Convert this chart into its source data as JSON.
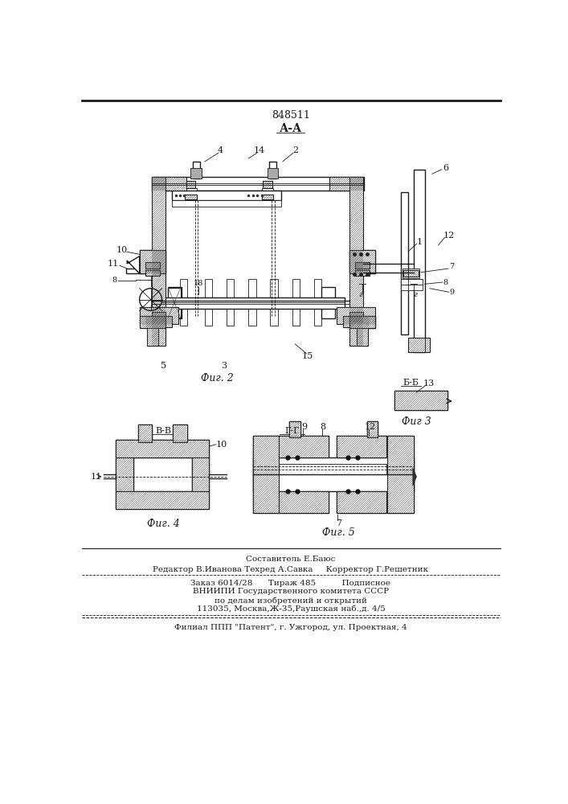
{
  "patent_number": "848511",
  "section_label_top": "А-А",
  "fig2_label": "Фиг. 2",
  "fig3_label": "Фиг 3",
  "fig4_label": "Фиг. 4",
  "fig5_label": "Фиг. 5",
  "section_bb_label": "Б-Б",
  "section_vv_label": "В-В",
  "section_gg_label": "Г-Г",
  "composer_line": "Составитель Е.Баюс",
  "editor_line": "Редактор В.Иванова Техред А.Савка     Корректор Г.Решетник",
  "order_line": "Заказ 6014/28      Тираж 485          Подписное",
  "vniiipi_line": "ВНИИПИ Государственного комитета СССР",
  "affairs_line": "по делам изобретений и открытий",
  "address_line": "113035, Москва,Ж-35,Раушская наб.,д. 4/5",
  "filial_line": "Филиал ППП \"Патент\", г. Ужгород, ул. Проектная, 4",
  "bg_color": "#ffffff",
  "line_color": "#1a1a1a",
  "hatch_color": "#555555",
  "hatch_face": "#cccccc"
}
